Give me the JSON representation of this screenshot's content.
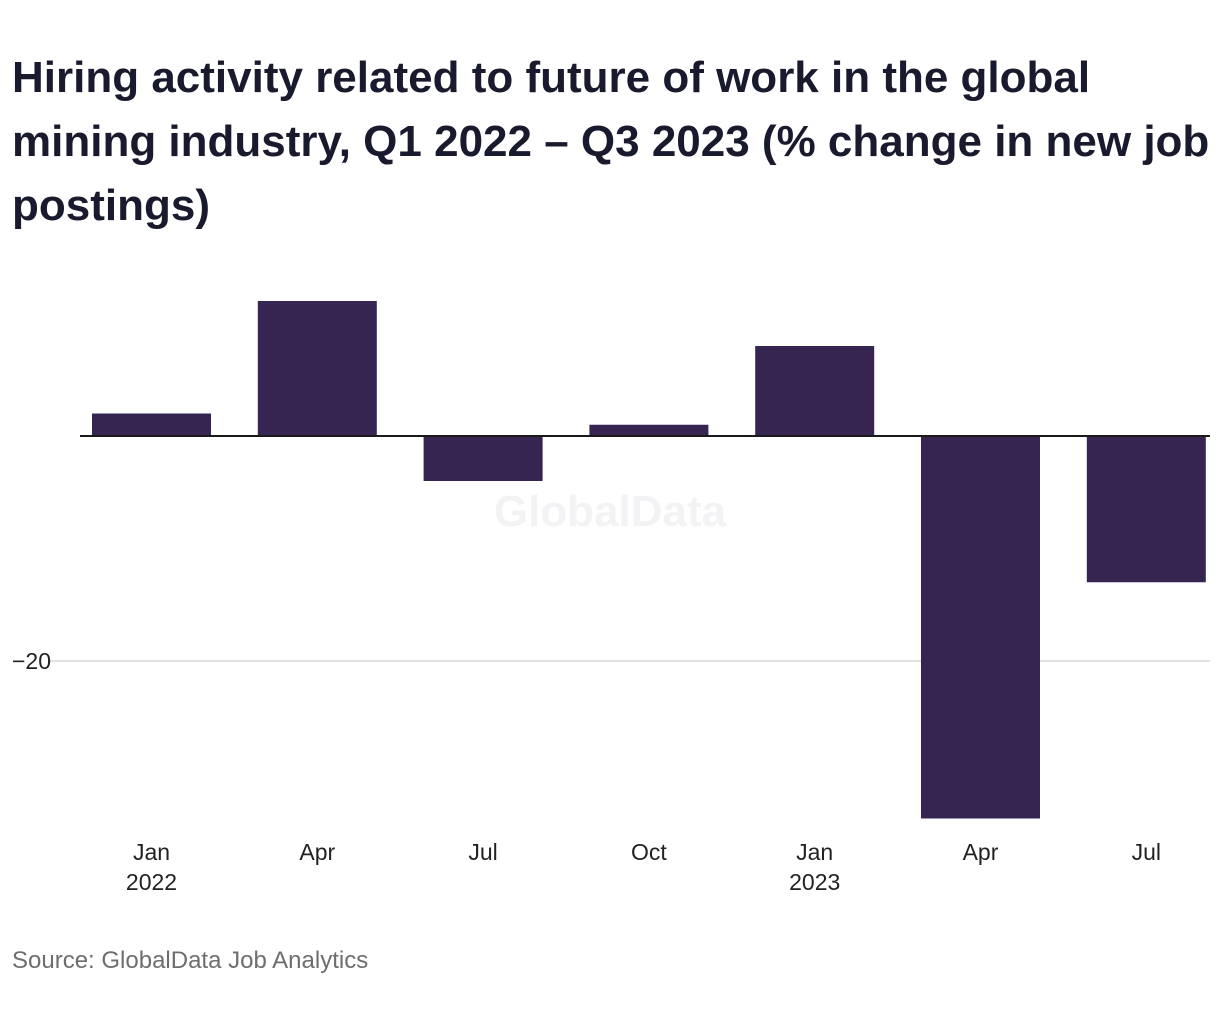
{
  "title": "Hiring activity related to future of work in the global mining industry, Q1 2022 – Q3 2023 (% change in new job postings)",
  "source": "Source: GlobalData Job Analytics",
  "watermark": "GlobalData",
  "colors": {
    "bar": "#352550",
    "grid": "#d9d9d9",
    "baseline": "#1a1a1a"
  },
  "chart_data": {
    "type": "bar",
    "title": "Hiring activity related to future of work in the global mining industry, Q1 2022 – Q3 2023 (% change in new job postings)",
    "xlabel": "",
    "ylabel": "",
    "categories": [
      "Q1 2022",
      "Q2 2022",
      "Q3 2022",
      "Q4 2022",
      "Q1 2023",
      "Q2 2023",
      "Q3 2023"
    ],
    "x_tick_labels": [
      {
        "month": "Jan",
        "year": "2022"
      },
      {
        "month": "Apr",
        "year": ""
      },
      {
        "month": "Jul",
        "year": ""
      },
      {
        "month": "Oct",
        "year": ""
      },
      {
        "month": "Jan",
        "year": "2023"
      },
      {
        "month": "Apr",
        "year": ""
      },
      {
        "month": "Jul",
        "year": ""
      }
    ],
    "values": [
      2.0,
      12.0,
      -4.0,
      1.0,
      8.0,
      -34.0,
      -13.0
    ],
    "y_ticks": [
      {
        "value": -20,
        "label": "−20"
      }
    ],
    "ylim": [
      -36,
      14
    ],
    "grid": true,
    "legend": "none"
  }
}
